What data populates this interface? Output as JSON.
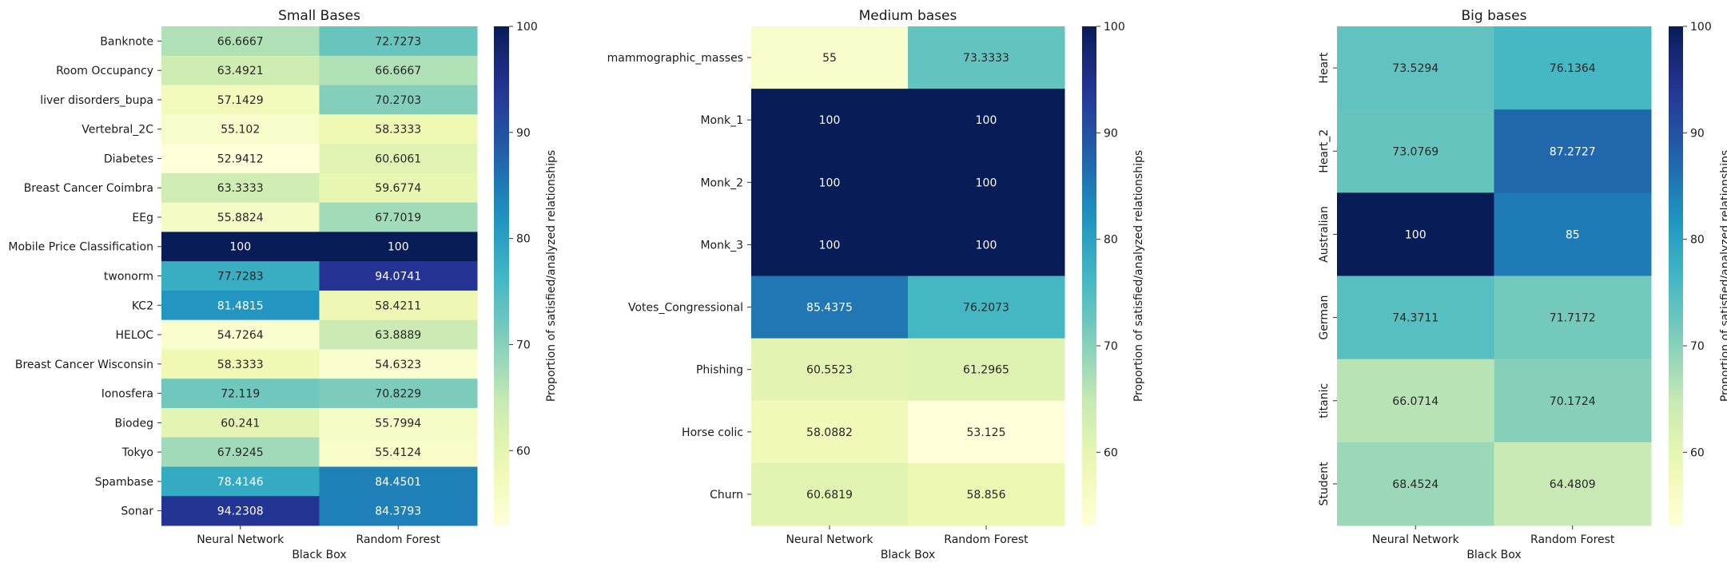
{
  "cbar_label": "Proportion of satisfied/analyzed relationships",
  "chart_data": [
    {
      "type": "heatmap",
      "title": "Small Bases",
      "xlabel": "Black Box",
      "ylabel": "",
      "x": [
        "Neural Network",
        "Random Forest"
      ],
      "y": [
        "Banknote",
        "Room Occupancy",
        "liver disorders_bupa",
        "Vertebral_2C",
        "Diabetes",
        "Breast Cancer Coimbra",
        "EEg",
        "Mobile Price Classification",
        "twonorm",
        "KC2",
        "HELOC",
        "Breast Cancer Wisconsin",
        "Ionosfera",
        "Biodeg",
        "Tokyo",
        "Spambase",
        "Sonar"
      ],
      "y_tick_rotation": 0,
      "values": [
        [
          "66.6667",
          "72.7273"
        ],
        [
          "63.4921",
          "66.6667"
        ],
        [
          "57.1429",
          "70.2703"
        ],
        [
          "55.102",
          "58.3333"
        ],
        [
          "52.9412",
          "60.6061"
        ],
        [
          "63.3333",
          "59.6774"
        ],
        [
          "55.8824",
          "67.7019"
        ],
        [
          "100",
          "100"
        ],
        [
          "77.7283",
          "94.0741"
        ],
        [
          "81.4815",
          "58.4211"
        ],
        [
          "54.7264",
          "63.8889"
        ],
        [
          "58.3333",
          "54.6323"
        ],
        [
          "72.119",
          "70.8229"
        ],
        [
          "60.241",
          "55.7994"
        ],
        [
          "67.9245",
          "55.4124"
        ],
        [
          "78.4146",
          "84.4501"
        ],
        [
          "94.2308",
          "84.3793"
        ]
      ],
      "colorbar": {
        "min": 52.9412,
        "max": 100,
        "ticks": [
          "60",
          "70",
          "80",
          "90",
          "100"
        ],
        "label": "Proportion of satisfied/analyzed relationships"
      }
    },
    {
      "type": "heatmap",
      "title": "Medium bases",
      "xlabel": "Black Box",
      "ylabel": "",
      "x": [
        "Neural Network",
        "Random Forest"
      ],
      "y": [
        "mammographic_masses",
        "Monk_1",
        "Monk_2",
        "Monk_3",
        "Votes_Congressional",
        "Phishing",
        "Horse colic",
        "Churn"
      ],
      "y_tick_rotation": 0,
      "values": [
        [
          "55",
          "73.3333"
        ],
        [
          "100",
          "100"
        ],
        [
          "100",
          "100"
        ],
        [
          "100",
          "100"
        ],
        [
          "85.4375",
          "76.2073"
        ],
        [
          "60.5523",
          "61.2965"
        ],
        [
          "58.0882",
          "53.125"
        ],
        [
          "60.6819",
          "58.856"
        ]
      ],
      "colorbar": {
        "min": 53.125,
        "max": 100,
        "ticks": [
          "60",
          "70",
          "80",
          "90",
          "100"
        ],
        "label": "Proportion of satisfied/analyzed relationships"
      }
    },
    {
      "type": "heatmap",
      "title": "Big bases",
      "xlabel": "Black Box",
      "ylabel": "",
      "x": [
        "Neural Network",
        "Random Forest"
      ],
      "y": [
        "Heart",
        "Heart_2",
        "Australian",
        "German",
        "titanic",
        "Student"
      ],
      "y_tick_rotation": 90,
      "values": [
        [
          "73.5294",
          "76.1364"
        ],
        [
          "73.0769",
          "87.2727"
        ],
        [
          "100",
          "85"
        ],
        [
          "74.3711",
          "71.7172"
        ],
        [
          "66.0714",
          "70.1724"
        ],
        [
          "68.4524",
          "64.4809"
        ]
      ],
      "colorbar": {
        "min": 53.125,
        "max": 100,
        "ticks": [
          "60",
          "70",
          "80",
          "90",
          "100"
        ],
        "label": "Proportion of satisfied/analyzed relationships"
      }
    }
  ],
  "colormap": [
    "#ffffd9",
    "#edf8b1",
    "#c7e9b4",
    "#7fcdbb",
    "#41b6c4",
    "#1d91c0",
    "#225ea8",
    "#253494",
    "#081d58"
  ]
}
